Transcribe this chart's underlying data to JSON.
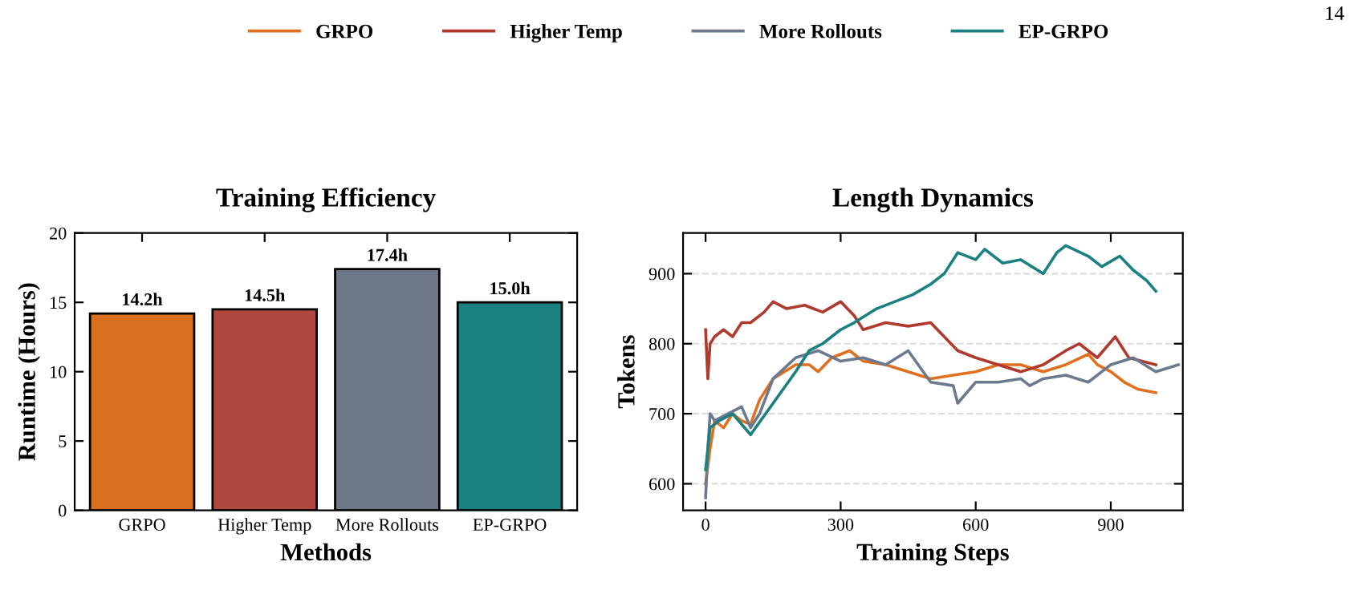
{
  "chart_data": [
    {
      "type": "bar",
      "title": "Training Efficiency",
      "xlabel": "Methods",
      "ylabel": "Runtime (Hours)",
      "categories": [
        "GRPO",
        "Higher Temp",
        "More Rollouts",
        "EP-GRPO"
      ],
      "values": [
        14.2,
        14.5,
        17.4,
        15.0
      ],
      "value_labels": [
        "14.2h",
        "14.5h",
        "17.4h",
        "15.0h"
      ],
      "colors": [
        "#d97020",
        "#b04840",
        "#6e7888",
        "#1a8080"
      ],
      "ylim": [
        0,
        20
      ],
      "yticks": [
        0,
        5,
        10,
        15,
        20
      ],
      "grid": false
    },
    {
      "type": "line",
      "title": "Length Dynamics",
      "xlabel": "Training Steps",
      "ylabel": "Tokens",
      "xlim": [
        -50,
        1060
      ],
      "xticks": [
        0,
        300,
        600,
        900
      ],
      "ylim": [
        562,
        958
      ],
      "yticks": [
        600,
        700,
        800,
        900
      ],
      "grid": "y",
      "legend": "top",
      "annotations": [
        "14"
      ],
      "series": [
        {
          "name": "GRPO",
          "color": "#e07020",
          "x": [
            0,
            10,
            20,
            40,
            60,
            80,
            100,
            120,
            150,
            200,
            230,
            250,
            280,
            320,
            350,
            400,
            450,
            500,
            550,
            600,
            650,
            700,
            750,
            800,
            850,
            870,
            900,
            930,
            960,
            1000
          ],
          "values": [
            600,
            650,
            690,
            680,
            700,
            690,
            685,
            720,
            750,
            770,
            770,
            760,
            780,
            790,
            775,
            770,
            760,
            750,
            755,
            760,
            770,
            770,
            760,
            770,
            785,
            770,
            760,
            745,
            735,
            730
          ]
        },
        {
          "name": "Higher Temp",
          "color": "#b03a2e",
          "x": [
            0,
            5,
            10,
            20,
            40,
            60,
            80,
            100,
            130,
            150,
            180,
            220,
            260,
            300,
            330,
            350,
            400,
            450,
            500,
            530,
            560,
            600,
            650,
            700,
            750,
            800,
            830,
            870,
            910,
            940,
            1000
          ],
          "values": [
            820,
            750,
            800,
            810,
            820,
            810,
            830,
            830,
            845,
            860,
            850,
            855,
            845,
            860,
            840,
            820,
            830,
            825,
            830,
            810,
            790,
            780,
            770,
            760,
            770,
            790,
            800,
            780,
            810,
            780,
            770
          ]
        },
        {
          "name": "More Rollouts",
          "color": "#6b7a8f",
          "x": [
            0,
            5,
            10,
            20,
            50,
            80,
            100,
            120,
            150,
            200,
            250,
            300,
            350,
            400,
            450,
            500,
            550,
            560,
            600,
            650,
            700,
            720,
            750,
            800,
            850,
            900,
            950,
            1000,
            1050
          ],
          "values": [
            580,
            650,
            700,
            690,
            700,
            710,
            680,
            700,
            750,
            780,
            790,
            775,
            780,
            770,
            790,
            745,
            740,
            715,
            745,
            745,
            750,
            740,
            750,
            755,
            745,
            770,
            780,
            760,
            770
          ]
        },
        {
          "name": "EP-GRPO",
          "color": "#1a8080",
          "x": [
            0,
            10,
            30,
            60,
            100,
            150,
            200,
            230,
            260,
            300,
            330,
            380,
            420,
            460,
            500,
            530,
            560,
            600,
            620,
            660,
            700,
            750,
            780,
            800,
            850,
            880,
            920,
            950,
            980,
            1000
          ],
          "values": [
            620,
            680,
            690,
            700,
            670,
            715,
            760,
            790,
            800,
            820,
            830,
            850,
            860,
            870,
            885,
            900,
            930,
            920,
            935,
            915,
            920,
            900,
            930,
            940,
            925,
            910,
            925,
            905,
            890,
            875
          ]
        }
      ]
    }
  ]
}
